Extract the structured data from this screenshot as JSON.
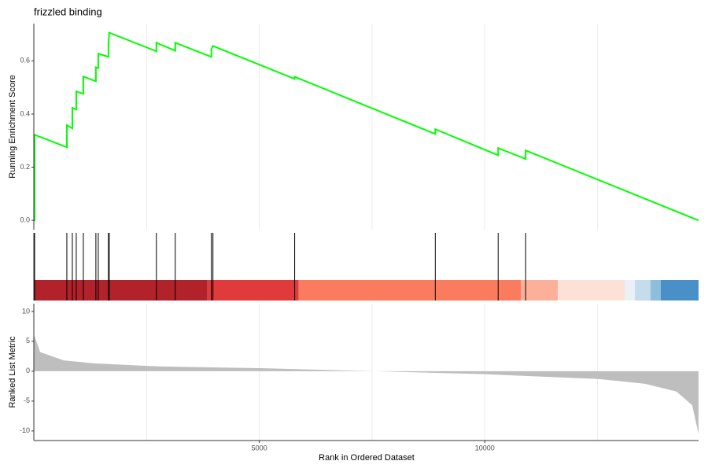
{
  "chart_data": [
    {
      "type": "line",
      "title": "frizzled binding",
      "ylabel": "Running Enrichment Score",
      "color": "#00ff00",
      "xlim": [
        0,
        14740
      ],
      "ylim": [
        -0.035,
        0.74
      ],
      "yticks": [
        {
          "value": 0,
          "label": "0.0"
        },
        0.2,
        0.4,
        0.6
      ],
      "xgrid": [
        2500,
        5000,
        7500,
        10000,
        12500
      ],
      "x": [
        0,
        17,
        17,
        732,
        732,
        854,
        854,
        941,
        941,
        1098,
        1098,
        1376,
        1376,
        1429,
        1429,
        1655,
        1655,
        1672,
        2718,
        2718,
        3136,
        3136,
        3937,
        3937,
        3972,
        5784,
        5784,
        8902,
        8902,
        10296,
        10296,
        10906,
        10906,
        14740
      ],
      "values": [
        0,
        0,
        0.322,
        0.275,
        0.358,
        0.346,
        0.423,
        0.417,
        0.485,
        0.476,
        0.541,
        0.523,
        0.576,
        0.573,
        0.627,
        0.615,
        0.665,
        0.706,
        0.636,
        0.668,
        0.638,
        0.668,
        0.615,
        0.644,
        0.656,
        0.532,
        0.54,
        0.325,
        0.343,
        0.245,
        0.272,
        0.231,
        0.263,
        0
      ]
    },
    {
      "type": "barcode",
      "xlim": [
        0,
        14740
      ],
      "hits": [
        17,
        732,
        854,
        941,
        1098,
        1376,
        1429,
        1655,
        1672,
        2718,
        3136,
        3937,
        3972,
        5784,
        8902,
        10296,
        10906
      ],
      "bands": [
        {
          "start": 0,
          "end": 3850,
          "color": "#b2222a"
        },
        {
          "start": 3850,
          "end": 5871,
          "color": "#e03a3a"
        },
        {
          "start": 5871,
          "end": 10801,
          "color": "#fb7b5e"
        },
        {
          "start": 10801,
          "end": 11620,
          "color": "#fcb09a"
        },
        {
          "start": 11620,
          "end": 13101,
          "color": "#fee1d6"
        },
        {
          "start": 13101,
          "end": 13328,
          "color": "#ebf0f6"
        },
        {
          "start": 13328,
          "end": 13676,
          "color": "#c4dcec"
        },
        {
          "start": 13676,
          "end": 13902,
          "color": "#8dbedc"
        },
        {
          "start": 13902,
          "end": 14740,
          "color": "#4a90c8"
        }
      ]
    },
    {
      "type": "area",
      "ylabel": "Ranked List Metric",
      "xlabel": "Rank in Ordered Dataset",
      "color": "#bebebe",
      "xlim": [
        0,
        14740
      ],
      "ylim": [
        -11.6,
        11.3
      ],
      "yticks": [
        -10,
        -5,
        0,
        5,
        10
      ],
      "xticks": [
        5000,
        10000
      ],
      "xgrid": [
        2500,
        5000,
        7500,
        10000,
        12500
      ],
      "x": [
        0,
        139,
        662,
        1359,
        2753,
        5017,
        7544,
        10000,
        12509,
        13554,
        14251,
        14599,
        14739
      ],
      "values": [
        6.2,
        3.2,
        1.8,
        1.3,
        0.8,
        0.5,
        0,
        -0.5,
        -1.3,
        -2.1,
        -3.4,
        -5.7,
        -10.5
      ]
    }
  ]
}
